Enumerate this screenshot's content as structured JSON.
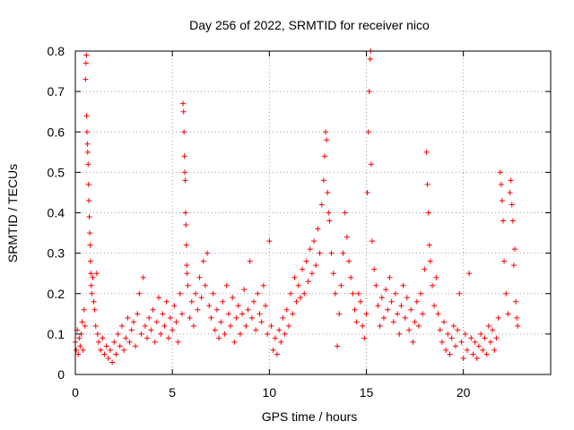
{
  "chart_data": {
    "type": "scatter",
    "title": "Day 256 of 2022, SRMTID for receiver nico",
    "xlabel": "GPS time / hours",
    "ylabel": "SRMTID / TECUs",
    "xlim": [
      0,
      24.5
    ],
    "ylim": [
      0,
      0.8
    ],
    "xticks": [
      0,
      5,
      10,
      15,
      20
    ],
    "yticks": [
      0,
      0.1,
      0.2,
      0.3,
      0.4,
      0.5,
      0.6,
      0.7,
      0.8
    ],
    "xtick_labels": [
      "0",
      "5",
      "10",
      "15",
      "20"
    ],
    "ytick_labels": [
      "0",
      "0.1",
      "0.2",
      "0.3",
      "0.4",
      "0.5",
      "0.6",
      "0.7",
      "0.8"
    ],
    "grid": true,
    "marker": "+",
    "color": "#ff0000",
    "series": [
      {
        "name": "SRMTID",
        "points": [
          [
            0.0,
            0.08
          ],
          [
            0.05,
            0.06
          ],
          [
            0.1,
            0.11
          ],
          [
            0.15,
            0.05
          ],
          [
            0.2,
            0.09
          ],
          [
            0.25,
            0.07
          ],
          [
            0.3,
            0.1
          ],
          [
            0.35,
            0.13
          ],
          [
            0.4,
            0.06
          ],
          [
            0.45,
            0.16
          ],
          [
            0.5,
            0.12
          ],
          [
            0.52,
            0.73
          ],
          [
            0.55,
            0.77
          ],
          [
            0.57,
            0.79
          ],
          [
            0.58,
            0.64
          ],
          [
            0.6,
            0.6
          ],
          [
            0.62,
            0.57
          ],
          [
            0.64,
            0.55
          ],
          [
            0.66,
            0.52
          ],
          [
            0.68,
            0.47
          ],
          [
            0.7,
            0.43
          ],
          [
            0.72,
            0.39
          ],
          [
            0.74,
            0.35
          ],
          [
            0.76,
            0.32
          ],
          [
            0.78,
            0.28
          ],
          [
            0.8,
            0.25
          ],
          [
            0.82,
            0.22
          ],
          [
            0.85,
            0.2
          ],
          [
            0.9,
            0.24
          ],
          [
            0.95,
            0.18
          ],
          [
            1.0,
            0.16
          ],
          [
            1.05,
            0.12
          ],
          [
            1.1,
            0.25
          ],
          [
            1.15,
            0.1
          ],
          [
            1.2,
            0.08
          ],
          [
            1.3,
            0.06
          ],
          [
            1.4,
            0.09
          ],
          [
            1.5,
            0.05
          ],
          [
            1.6,
            0.07
          ],
          [
            1.7,
            0.04
          ],
          [
            1.8,
            0.06
          ],
          [
            1.9,
            0.03
          ],
          [
            2.0,
            0.08
          ],
          [
            2.1,
            0.05
          ],
          [
            2.2,
            0.1
          ],
          [
            2.3,
            0.07
          ],
          [
            2.4,
            0.12
          ],
          [
            2.5,
            0.06
          ],
          [
            2.6,
            0.09
          ],
          [
            2.7,
            0.14
          ],
          [
            2.8,
            0.08
          ],
          [
            2.9,
            0.11
          ],
          [
            3.0,
            0.13
          ],
          [
            3.1,
            0.07
          ],
          [
            3.2,
            0.15
          ],
          [
            3.3,
            0.2
          ],
          [
            3.4,
            0.1
          ],
          [
            3.5,
            0.24
          ],
          [
            3.6,
            0.12
          ],
          [
            3.7,
            0.09
          ],
          [
            3.8,
            0.14
          ],
          [
            3.9,
            0.11
          ],
          [
            4.0,
            0.16
          ],
          [
            4.1,
            0.08
          ],
          [
            4.2,
            0.13
          ],
          [
            4.3,
            0.19
          ],
          [
            4.4,
            0.1
          ],
          [
            4.5,
            0.15
          ],
          [
            4.6,
            0.12
          ],
          [
            4.7,
            0.18
          ],
          [
            4.8,
            0.09
          ],
          [
            4.9,
            0.14
          ],
          [
            5.0,
            0.11
          ],
          [
            5.1,
            0.17
          ],
          [
            5.2,
            0.13
          ],
          [
            5.3,
            0.08
          ],
          [
            5.4,
            0.2
          ],
          [
            5.5,
            0.15
          ],
          [
            5.55,
            0.67
          ],
          [
            5.58,
            0.65
          ],
          [
            5.6,
            0.6
          ],
          [
            5.62,
            0.54
          ],
          [
            5.64,
            0.5
          ],
          [
            5.66,
            0.48
          ],
          [
            5.68,
            0.4
          ],
          [
            5.7,
            0.37
          ],
          [
            5.72,
            0.32
          ],
          [
            5.74,
            0.27
          ],
          [
            5.76,
            0.25
          ],
          [
            5.8,
            0.22
          ],
          [
            5.9,
            0.14
          ],
          [
            6.0,
            0.18
          ],
          [
            6.1,
            0.12
          ],
          [
            6.2,
            0.2
          ],
          [
            6.3,
            0.16
          ],
          [
            6.4,
            0.24
          ],
          [
            6.5,
            0.19
          ],
          [
            6.6,
            0.28
          ],
          [
            6.7,
            0.22
          ],
          [
            6.8,
            0.3
          ],
          [
            6.9,
            0.17
          ],
          [
            7.0,
            0.14
          ],
          [
            7.1,
            0.2
          ],
          [
            7.2,
            0.11
          ],
          [
            7.3,
            0.16
          ],
          [
            7.4,
            0.09
          ],
          [
            7.5,
            0.13
          ],
          [
            7.6,
            0.18
          ],
          [
            7.7,
            0.1
          ],
          [
            7.8,
            0.22
          ],
          [
            7.9,
            0.15
          ],
          [
            8.0,
            0.12
          ],
          [
            8.1,
            0.19
          ],
          [
            8.2,
            0.08
          ],
          [
            8.3,
            0.14
          ],
          [
            8.4,
            0.17
          ],
          [
            8.5,
            0.1
          ],
          [
            8.6,
            0.15
          ],
          [
            8.7,
            0.21
          ],
          [
            8.8,
            0.12
          ],
          [
            8.9,
            0.16
          ],
          [
            9.0,
            0.28
          ],
          [
            9.1,
            0.14
          ],
          [
            9.2,
            0.18
          ],
          [
            9.3,
            0.11
          ],
          [
            9.4,
            0.2
          ],
          [
            9.5,
            0.15
          ],
          [
            9.6,
            0.13
          ],
          [
            9.7,
            0.22
          ],
          [
            9.8,
            0.17
          ],
          [
            9.9,
            0.1
          ],
          [
            10.0,
            0.33
          ],
          [
            10.1,
            0.12
          ],
          [
            10.2,
            0.06
          ],
          [
            10.3,
            0.09
          ],
          [
            10.4,
            0.05
          ],
          [
            10.5,
            0.11
          ],
          [
            10.6,
            0.08
          ],
          [
            10.7,
            0.14
          ],
          [
            10.8,
            0.1
          ],
          [
            10.9,
            0.16
          ],
          [
            11.0,
            0.12
          ],
          [
            11.1,
            0.2
          ],
          [
            11.2,
            0.15
          ],
          [
            11.3,
            0.24
          ],
          [
            11.4,
            0.18
          ],
          [
            11.5,
            0.22
          ],
          [
            11.6,
            0.19
          ],
          [
            11.7,
            0.26
          ],
          [
            11.8,
            0.2
          ],
          [
            11.9,
            0.28
          ],
          [
            12.0,
            0.23
          ],
          [
            12.1,
            0.31
          ],
          [
            12.2,
            0.25
          ],
          [
            12.3,
            0.33
          ],
          [
            12.4,
            0.27
          ],
          [
            12.5,
            0.36
          ],
          [
            12.6,
            0.3
          ],
          [
            12.7,
            0.42
          ],
          [
            12.8,
            0.48
          ],
          [
            12.85,
            0.54
          ],
          [
            12.9,
            0.6
          ],
          [
            12.95,
            0.58
          ],
          [
            13.0,
            0.45
          ],
          [
            13.05,
            0.4
          ],
          [
            13.1,
            0.38
          ],
          [
            13.2,
            0.3
          ],
          [
            13.3,
            0.25
          ],
          [
            13.4,
            0.2
          ],
          [
            13.5,
            0.07
          ],
          [
            13.6,
            0.15
          ],
          [
            13.7,
            0.22
          ],
          [
            13.8,
            0.3
          ],
          [
            13.9,
            0.4
          ],
          [
            14.0,
            0.34
          ],
          [
            14.1,
            0.28
          ],
          [
            14.2,
            0.24
          ],
          [
            14.3,
            0.2
          ],
          [
            14.4,
            0.16
          ],
          [
            14.5,
            0.13
          ],
          [
            14.6,
            0.2
          ],
          [
            14.7,
            0.18
          ],
          [
            14.8,
            0.12
          ],
          [
            14.9,
            0.09
          ],
          [
            15.0,
            0.15
          ],
          [
            15.05,
            0.45
          ],
          [
            15.1,
            0.6
          ],
          [
            15.15,
            0.7
          ],
          [
            15.2,
            0.78
          ],
          [
            15.22,
            0.8
          ],
          [
            15.25,
            0.52
          ],
          [
            15.3,
            0.33
          ],
          [
            15.4,
            0.26
          ],
          [
            15.5,
            0.22
          ],
          [
            15.6,
            0.17
          ],
          [
            15.7,
            0.12
          ],
          [
            15.8,
            0.19
          ],
          [
            15.9,
            0.14
          ],
          [
            16.0,
            0.21
          ],
          [
            16.1,
            0.16
          ],
          [
            16.2,
            0.24
          ],
          [
            16.3,
            0.18
          ],
          [
            16.4,
            0.13
          ],
          [
            16.5,
            0.2
          ],
          [
            16.6,
            0.15
          ],
          [
            16.7,
            0.1
          ],
          [
            16.8,
            0.17
          ],
          [
            16.9,
            0.22
          ],
          [
            17.0,
            0.14
          ],
          [
            17.1,
            0.19
          ],
          [
            17.2,
            0.11
          ],
          [
            17.3,
            0.16
          ],
          [
            17.4,
            0.08
          ],
          [
            17.5,
            0.13
          ],
          [
            17.6,
            0.18
          ],
          [
            17.7,
            0.12
          ],
          [
            17.8,
            0.2
          ],
          [
            17.9,
            0.15
          ],
          [
            18.0,
            0.26
          ],
          [
            18.1,
            0.55
          ],
          [
            18.15,
            0.47
          ],
          [
            18.2,
            0.4
          ],
          [
            18.25,
            0.32
          ],
          [
            18.3,
            0.28
          ],
          [
            18.4,
            0.22
          ],
          [
            18.5,
            0.17
          ],
          [
            18.6,
            0.24
          ],
          [
            18.7,
            0.15
          ],
          [
            18.8,
            0.11
          ],
          [
            18.9,
            0.08
          ],
          [
            19.0,
            0.13
          ],
          [
            19.1,
            0.06
          ],
          [
            19.2,
            0.1
          ],
          [
            19.3,
            0.05
          ],
          [
            19.4,
            0.09
          ],
          [
            19.5,
            0.12
          ],
          [
            19.6,
            0.07
          ],
          [
            19.7,
            0.11
          ],
          [
            19.8,
            0.2
          ],
          [
            19.9,
            0.08
          ],
          [
            20.0,
            0.04
          ],
          [
            20.1,
            0.1
          ],
          [
            20.2,
            0.06
          ],
          [
            20.3,
            0.25
          ],
          [
            20.4,
            0.09
          ],
          [
            20.5,
            0.05
          ],
          [
            20.6,
            0.08
          ],
          [
            20.7,
            0.04
          ],
          [
            20.8,
            0.07
          ],
          [
            20.9,
            0.1
          ],
          [
            21.0,
            0.06
          ],
          [
            21.1,
            0.09
          ],
          [
            21.2,
            0.05
          ],
          [
            21.3,
            0.12
          ],
          [
            21.4,
            0.08
          ],
          [
            21.5,
            0.11
          ],
          [
            21.6,
            0.06
          ],
          [
            21.7,
            0.09
          ],
          [
            21.8,
            0.14
          ],
          [
            21.9,
            0.5
          ],
          [
            21.95,
            0.47
          ],
          [
            22.0,
            0.43
          ],
          [
            22.05,
            0.38
          ],
          [
            22.1,
            0.28
          ],
          [
            22.2,
            0.2
          ],
          [
            22.3,
            0.15
          ],
          [
            22.4,
            0.45
          ],
          [
            22.45,
            0.48
          ],
          [
            22.5,
            0.42
          ],
          [
            22.55,
            0.38
          ],
          [
            22.6,
            0.27
          ],
          [
            22.65,
            0.31
          ],
          [
            22.7,
            0.18
          ],
          [
            22.75,
            0.14
          ],
          [
            22.8,
            0.12
          ]
        ]
      }
    ]
  }
}
